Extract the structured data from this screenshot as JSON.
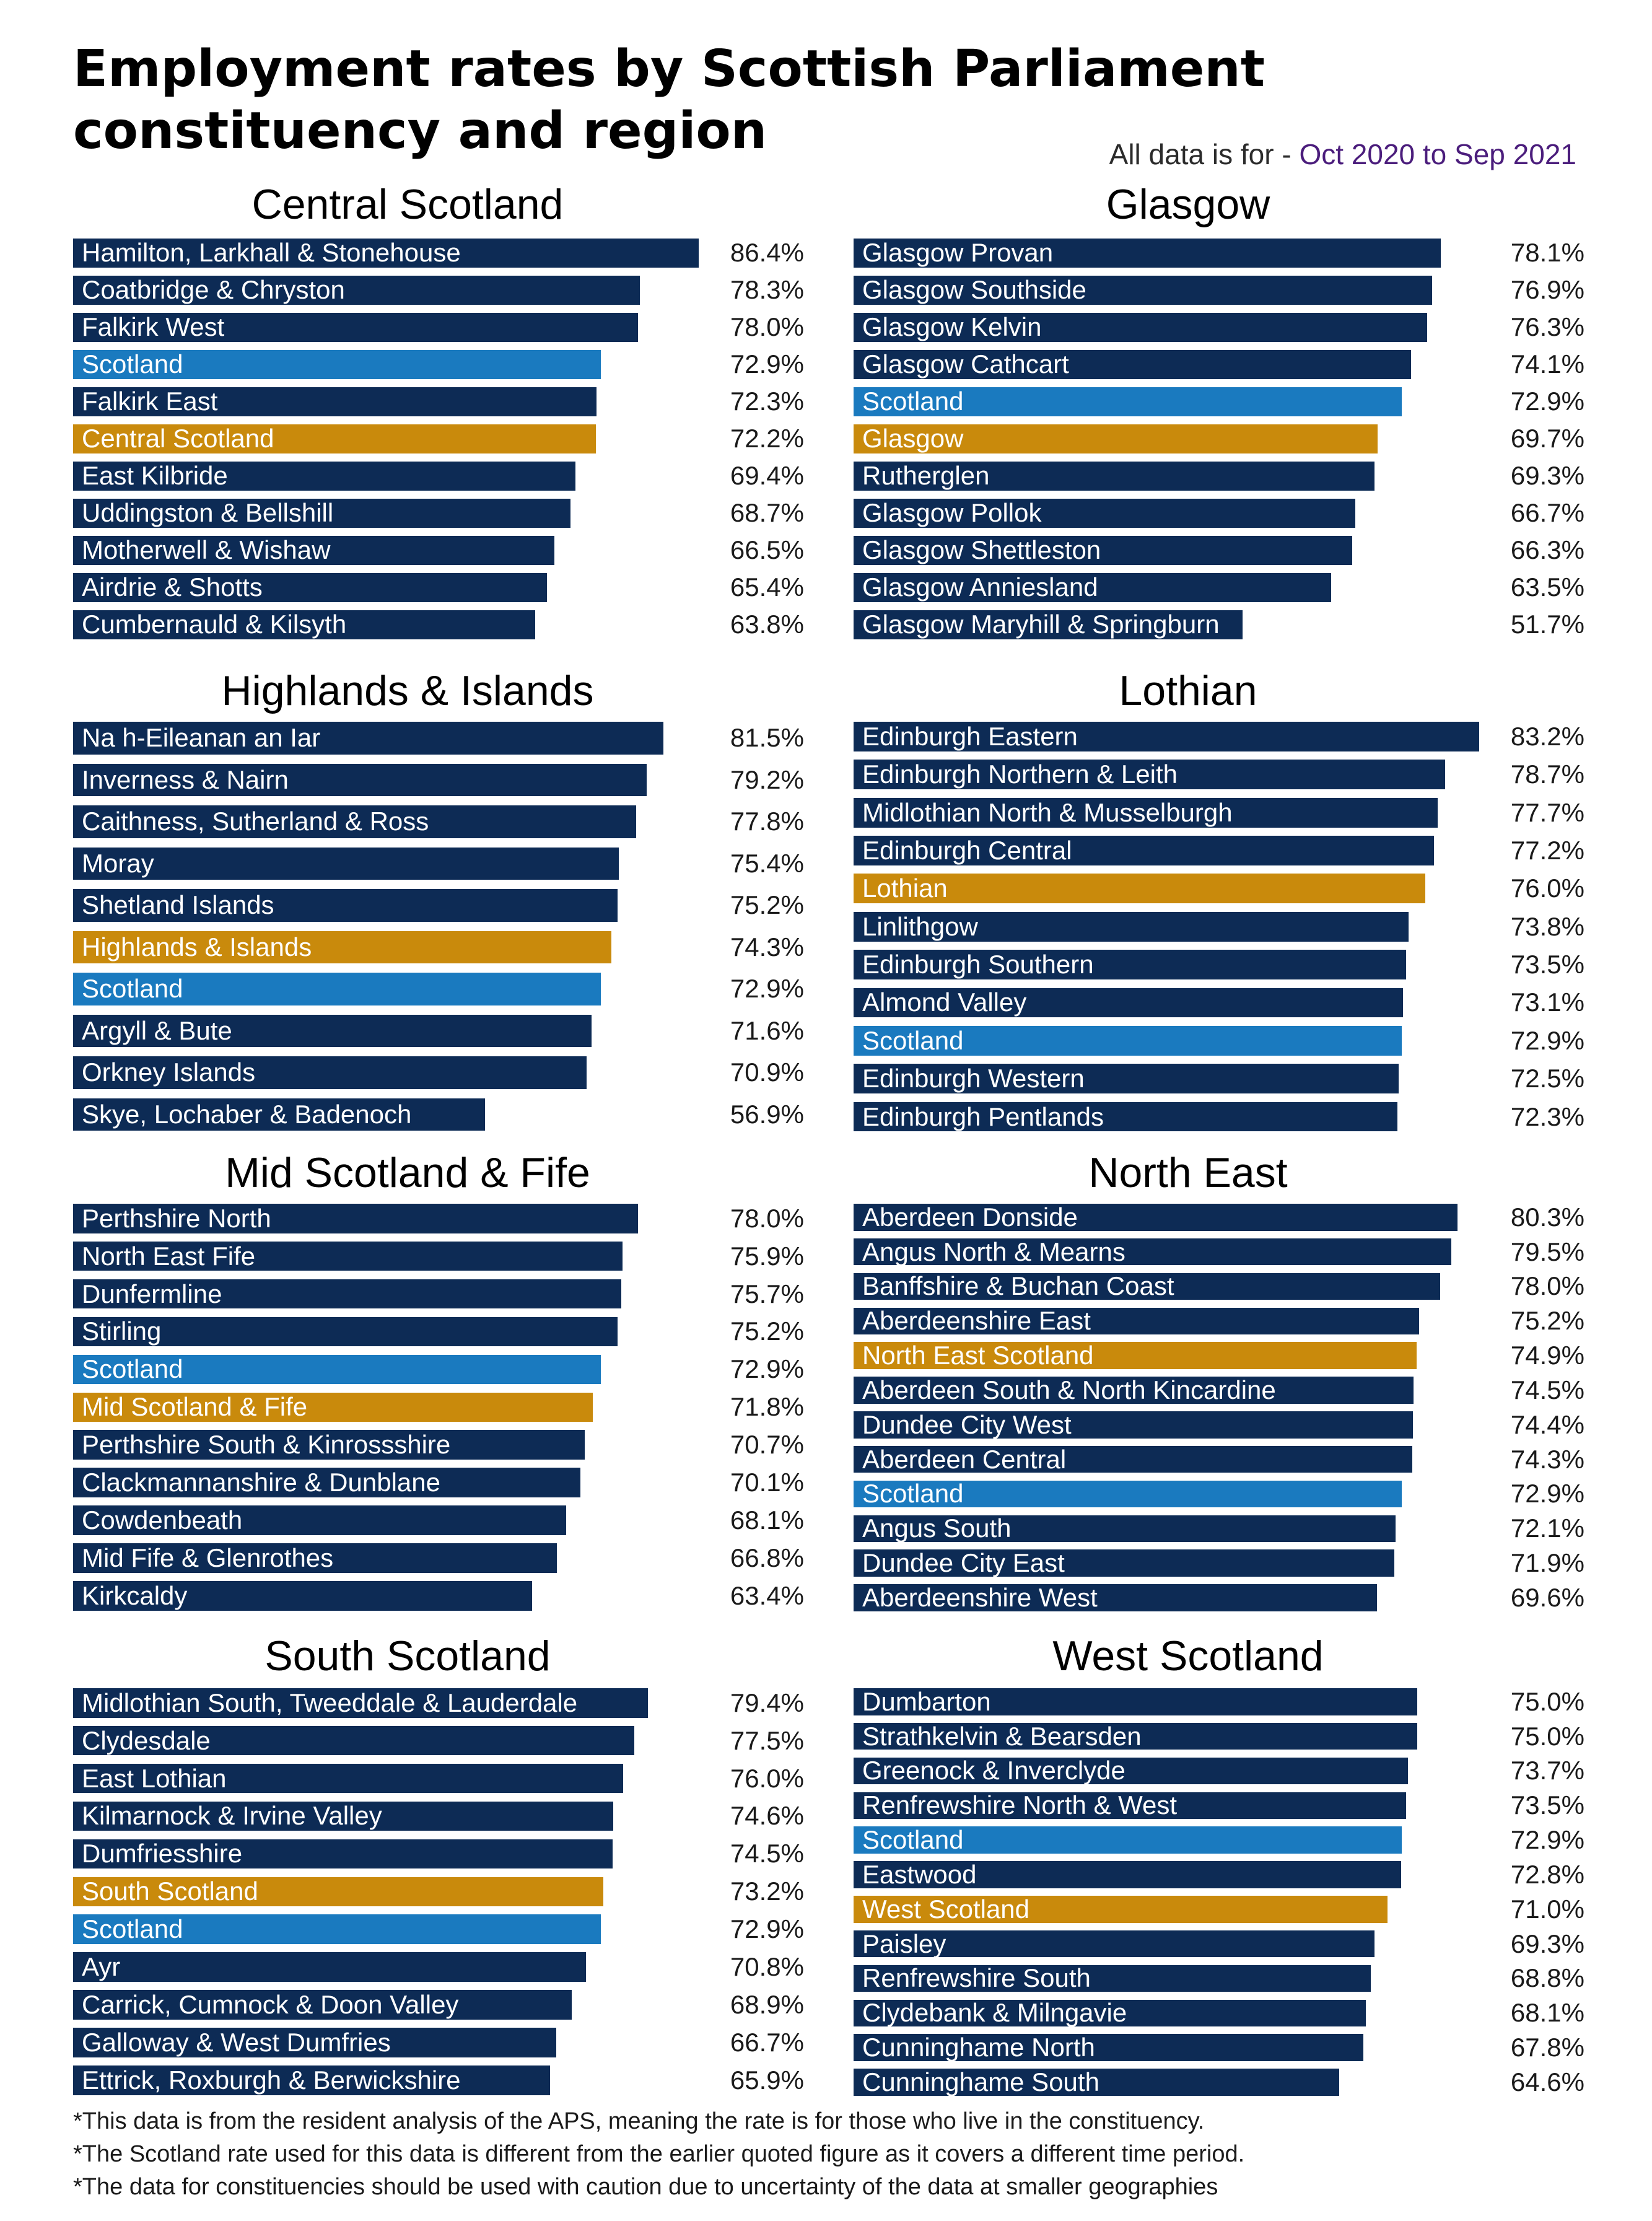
{
  "title": "Employment rates by Scottish Parliament constituency and region",
  "period_label": "All data is for - ",
  "period_value": "Oct 2020 to Sep 2021",
  "colors": {
    "constituency": "#0d2b55",
    "scotland": "#1a7abf",
    "region": "#c98a0c",
    "period": "#4b1d7c"
  },
  "footnotes": [
    "*This data is from the resident analysis of the APS, meaning the rate is for those who live in the constituency.",
    "*The Scotland rate used for this data is different from the earlier quoted figure as it covers a different time period.",
    "*The data for constituencies should be used with caution due to uncertainty of the data at smaller geographies"
  ],
  "chart_data": [
    {
      "type": "bar",
      "orientation": "horizontal",
      "title": "Central Scotland",
      "xlim": [
        0,
        86.4
      ],
      "categories": [
        "Hamilton, Larkhall & Stonehouse",
        "Coatbridge & Chryston",
        "Falkirk West",
        "Scotland",
        "Falkirk East",
        "Central Scotland",
        "East Kilbride",
        "Uddingston & Bellshill",
        "Motherwell & Wishaw",
        "Airdrie & Shotts",
        "Cumbernauld & Kilsyth"
      ],
      "values": [
        86.4,
        78.3,
        78.0,
        72.9,
        72.3,
        72.2,
        69.4,
        68.7,
        66.5,
        65.4,
        63.8
      ],
      "labels": [
        "86.4%",
        "78.3%",
        "78.0%",
        "72.9%",
        "72.3%",
        "72.2%",
        "69.4%",
        "68.7%",
        "66.5%",
        "65.4%",
        "63.8%"
      ],
      "kinds": [
        "c",
        "c",
        "c",
        "s",
        "c",
        "r",
        "c",
        "c",
        "c",
        "c",
        "c"
      ]
    },
    {
      "type": "bar",
      "orientation": "horizontal",
      "title": "Glasgow",
      "xlim": [
        0,
        83.2
      ],
      "categories": [
        "Glasgow Provan",
        "Glasgow Southside",
        "Glasgow Kelvin",
        "Glasgow Cathcart",
        "Scotland",
        "Glasgow",
        "Rutherglen",
        "Glasgow Pollok",
        "Glasgow Shettleston",
        "Glasgow Anniesland",
        "Glasgow Maryhill & Springburn"
      ],
      "values": [
        78.1,
        76.9,
        76.3,
        74.1,
        72.9,
        69.7,
        69.3,
        66.7,
        66.3,
        63.5,
        51.7
      ],
      "labels": [
        "78.1%",
        "76.9%",
        "76.3%",
        "74.1%",
        "72.9%",
        "69.7%",
        "69.3%",
        "66.7%",
        "66.3%",
        "63.5%",
        "51.7%"
      ],
      "kinds": [
        "c",
        "c",
        "c",
        "c",
        "s",
        "r",
        "c",
        "c",
        "c",
        "c",
        "c"
      ]
    },
    {
      "type": "bar",
      "orientation": "horizontal",
      "title": "Highlands & Islands",
      "xlim": [
        0,
        86.4
      ],
      "categories": [
        "Na h-Eileanan an Iar",
        "Inverness & Nairn",
        "Caithness, Sutherland & Ross",
        "Moray",
        "Shetland Islands",
        "Highlands & Islands",
        "Scotland",
        "Argyll & Bute",
        "Orkney Islands",
        "Skye, Lochaber & Badenoch"
      ],
      "values": [
        81.5,
        79.2,
        77.8,
        75.4,
        75.2,
        74.3,
        72.9,
        71.6,
        70.9,
        56.9
      ],
      "labels": [
        "81.5%",
        "79.2%",
        "77.8%",
        "75.4%",
        "75.2%",
        "74.3%",
        "72.9%",
        "71.6%",
        "70.9%",
        "56.9%"
      ],
      "kinds": [
        "c",
        "c",
        "c",
        "c",
        "c",
        "r",
        "s",
        "c",
        "c",
        "c"
      ]
    },
    {
      "type": "bar",
      "orientation": "horizontal",
      "title": "Lothian",
      "xlim": [
        0,
        83.2
      ],
      "categories": [
        "Edinburgh Eastern",
        "Edinburgh Northern & Leith",
        "Midlothian North & Musselburgh",
        "Edinburgh Central",
        "Lothian",
        "Linlithgow",
        "Edinburgh Southern",
        "Almond Valley",
        "Scotland",
        "Edinburgh Western",
        "Edinburgh Pentlands"
      ],
      "values": [
        83.2,
        78.7,
        77.7,
        77.2,
        76.0,
        73.8,
        73.5,
        73.1,
        72.9,
        72.5,
        72.3
      ],
      "labels": [
        "83.2%",
        "78.7%",
        "77.7%",
        "77.2%",
        "76.0%",
        "73.8%",
        "73.5%",
        "73.1%",
        "72.9%",
        "72.5%",
        "72.3%"
      ],
      "kinds": [
        "c",
        "c",
        "c",
        "c",
        "r",
        "c",
        "c",
        "c",
        "s",
        "c",
        "c"
      ]
    },
    {
      "type": "bar",
      "orientation": "horizontal",
      "title": "Mid Scotland & Fife",
      "xlim": [
        0,
        86.4
      ],
      "categories": [
        "Perthshire North",
        "North East Fife",
        "Dunfermline",
        "Stirling",
        "Scotland",
        "Mid Scotland & Fife",
        "Perthshire South & Kinrossshire",
        "Clackmannanshire & Dunblane",
        "Cowdenbeath",
        "Mid Fife & Glenrothes",
        "Kirkcaldy"
      ],
      "values": [
        78.0,
        75.9,
        75.7,
        75.2,
        72.9,
        71.8,
        70.7,
        70.1,
        68.1,
        66.8,
        63.4
      ],
      "labels": [
        "78.0%",
        "75.9%",
        "75.7%",
        "75.2%",
        "72.9%",
        "71.8%",
        "70.7%",
        "70.1%",
        "68.1%",
        "66.8%",
        "63.4%"
      ],
      "kinds": [
        "c",
        "c",
        "c",
        "c",
        "s",
        "r",
        "c",
        "c",
        "c",
        "c",
        "c"
      ]
    },
    {
      "type": "bar",
      "orientation": "horizontal",
      "title": "North East",
      "xlim": [
        0,
        83.2
      ],
      "categories": [
        "Aberdeen Donside",
        "Angus North & Mearns",
        "Banffshire & Buchan Coast",
        "Aberdeenshire East",
        "North East Scotland",
        "Aberdeen South & North Kincardine",
        "Dundee City West",
        "Aberdeen Central",
        "Scotland",
        "Angus South",
        "Dundee City East",
        "Aberdeenshire West"
      ],
      "values": [
        80.3,
        79.5,
        78.0,
        75.2,
        74.9,
        74.5,
        74.4,
        74.3,
        72.9,
        72.1,
        71.9,
        69.6
      ],
      "labels": [
        "80.3%",
        "79.5%",
        "78.0%",
        "75.2%",
        "74.9%",
        "74.5%",
        "74.4%",
        "74.3%",
        "72.9%",
        "72.1%",
        "71.9%",
        "69.6%"
      ],
      "kinds": [
        "c",
        "c",
        "c",
        "c",
        "r",
        "c",
        "c",
        "c",
        "s",
        "c",
        "c",
        "c"
      ]
    },
    {
      "type": "bar",
      "orientation": "horizontal",
      "title": "South Scotland",
      "xlim": [
        0,
        86.4
      ],
      "categories": [
        "Midlothian South, Tweeddale & Lauderdale",
        "Clydesdale",
        "East Lothian",
        "Kilmarnock & Irvine Valley",
        "Dumfriesshire",
        "South Scotland",
        "Scotland",
        "Ayr",
        "Carrick, Cumnock & Doon Valley",
        "Galloway & West Dumfries",
        "Ettrick, Roxburgh & Berwickshire"
      ],
      "values": [
        79.4,
        77.5,
        76.0,
        74.6,
        74.5,
        73.2,
        72.9,
        70.8,
        68.9,
        66.7,
        65.9
      ],
      "labels": [
        "79.4%",
        "77.5%",
        "76.0%",
        "74.6%",
        "74.5%",
        "73.2%",
        "72.9%",
        "70.8%",
        "68.9%",
        "66.7%",
        "65.9%"
      ],
      "kinds": [
        "c",
        "c",
        "c",
        "c",
        "c",
        "r",
        "s",
        "c",
        "c",
        "c",
        "c"
      ]
    },
    {
      "type": "bar",
      "orientation": "horizontal",
      "title": "West Scotland",
      "xlim": [
        0,
        83.2
      ],
      "categories": [
        "Dumbarton",
        "Strathkelvin & Bearsden",
        "Greenock & Inverclyde",
        "Renfrewshire North & West",
        "Scotland",
        "Eastwood",
        "West Scotland",
        "Paisley",
        "Renfrewshire South",
        "Clydebank & Milngavie",
        "Cunninghame North",
        "Cunninghame South"
      ],
      "values": [
        75.0,
        75.0,
        73.7,
        73.5,
        72.9,
        72.8,
        71.0,
        69.3,
        68.8,
        68.1,
        67.8,
        64.6
      ],
      "labels": [
        "75.0%",
        "75.0%",
        "73.7%",
        "73.5%",
        "72.9%",
        "72.8%",
        "71.0%",
        "69.3%",
        "68.8%",
        "68.1%",
        "67.8%",
        "64.6%"
      ],
      "kinds": [
        "c",
        "c",
        "c",
        "c",
        "s",
        "c",
        "r",
        "c",
        "c",
        "c",
        "c",
        "c"
      ]
    }
  ]
}
